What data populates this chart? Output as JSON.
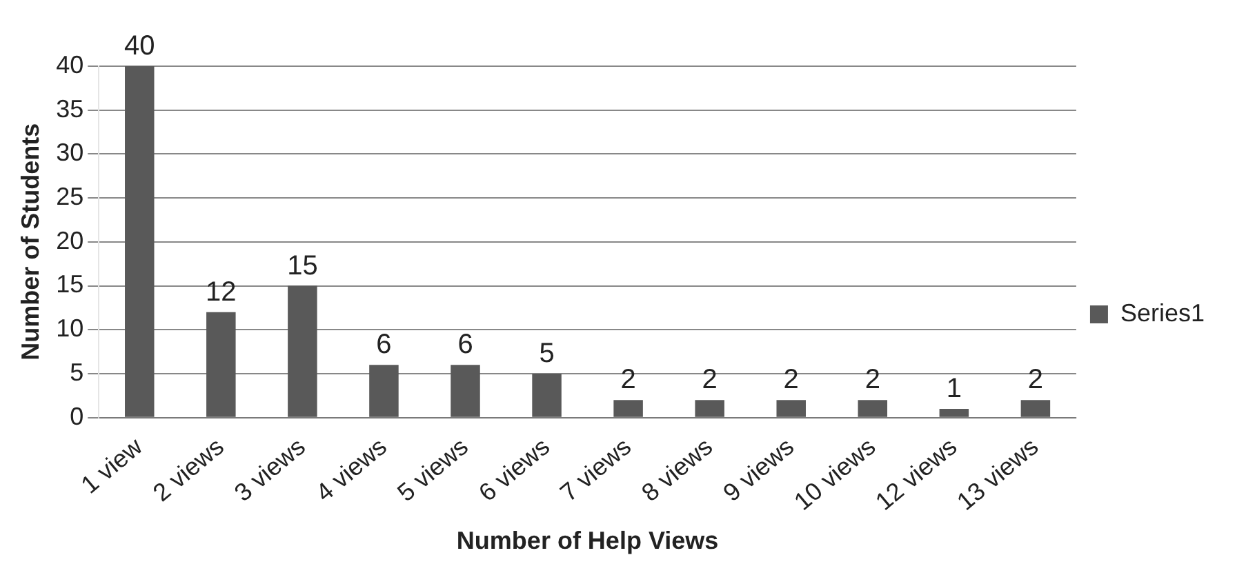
{
  "chart_data": {
    "type": "bar",
    "xlabel": "Number of Help Views",
    "ylabel": "Number of Students",
    "categories": [
      "1 view",
      "2 views",
      "3 views",
      "4 views",
      "5 views",
      "6 views",
      "7 views",
      "8 views",
      "9 views",
      "10 views",
      "12 views",
      "13 views"
    ],
    "series": [
      {
        "name": "Series1",
        "color": "#595959",
        "values": [
          40,
          12,
          15,
          6,
          6,
          5,
          2,
          2,
          2,
          2,
          1,
          2
        ]
      }
    ],
    "ylim": [
      0,
      40
    ],
    "yticks": [
      0,
      5,
      10,
      15,
      20,
      25,
      30,
      35,
      40
    ],
    "grid": "y",
    "legend": "right",
    "data_labels": true
  }
}
